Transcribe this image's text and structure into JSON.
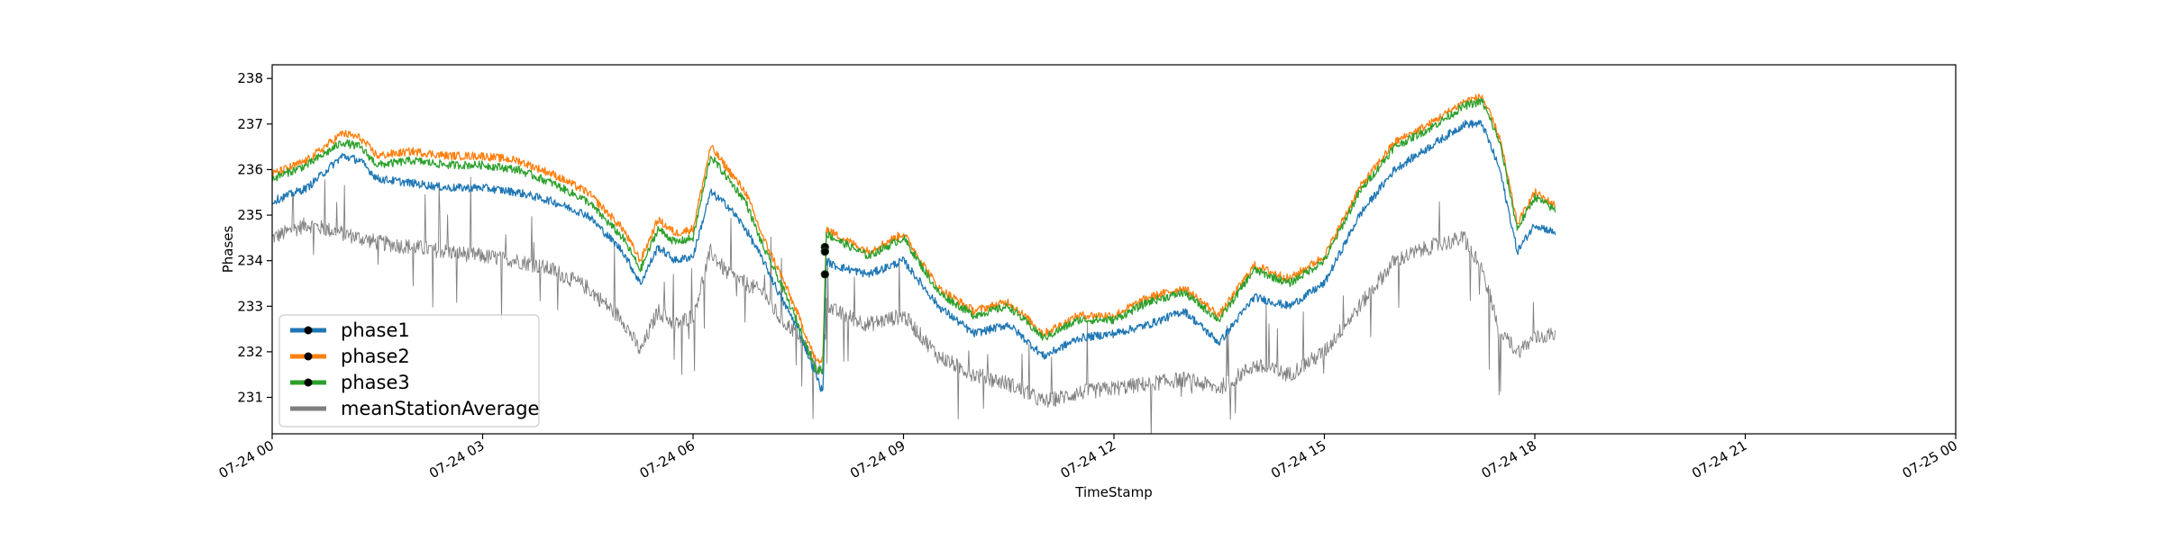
{
  "chart_data": {
    "type": "line",
    "title": "",
    "xlabel": "TimeStamp",
    "ylabel": "Phases",
    "xlim": [
      "2024-07-24 00:00",
      "2024-07-25 00:00"
    ],
    "ylim": [
      230.2,
      238.3
    ],
    "x_tick_labels": [
      "07-24 00",
      "07-24 03",
      "07-24 06",
      "07-24 09",
      "07-24 12",
      "07-24 15",
      "07-24 18",
      "07-24 21",
      "07-25 00"
    ],
    "y_ticks": [
      231,
      232,
      233,
      234,
      235,
      236,
      237,
      238
    ],
    "grid": false,
    "legend_position": "lower-left",
    "x_hours": [
      0,
      0.5,
      1.0,
      1.25,
      1.5,
      2.0,
      2.5,
      3.0,
      3.5,
      4.0,
      4.5,
      5.0,
      5.25,
      5.5,
      5.75,
      6.0,
      6.25,
      6.5,
      6.75,
      7.0,
      7.25,
      7.5,
      7.75,
      7.85,
      7.9,
      8.0,
      8.5,
      9.0,
      9.5,
      10.0,
      10.5,
      11.0,
      11.5,
      12.0,
      12.5,
      13.0,
      13.5,
      14.0,
      14.5,
      15.0,
      15.5,
      16.0,
      16.5,
      17.0,
      17.25,
      17.5,
      17.75,
      18.0,
      18.3
    ],
    "series": [
      {
        "name": "phase1",
        "color": "#1f77b4",
        "values": [
          235.3,
          235.6,
          236.3,
          236.2,
          235.8,
          235.7,
          235.6,
          235.6,
          235.5,
          235.3,
          235.0,
          234.2,
          233.5,
          234.3,
          234.0,
          234.1,
          235.5,
          235.2,
          234.7,
          234.0,
          233.2,
          232.5,
          231.5,
          231.1,
          234.0,
          233.9,
          233.7,
          234.0,
          233.0,
          232.4,
          232.6,
          231.9,
          232.3,
          232.4,
          232.6,
          232.9,
          232.2,
          233.2,
          233.0,
          233.5,
          235.0,
          236.0,
          236.5,
          237.0,
          237.0,
          236.0,
          234.2,
          234.8,
          234.6
        ]
      },
      {
        "name": "phase2",
        "color": "#ff7f0e",
        "values": [
          235.9,
          236.2,
          236.8,
          236.7,
          236.3,
          236.4,
          236.3,
          236.3,
          236.2,
          235.9,
          235.5,
          234.7,
          234.0,
          234.9,
          234.6,
          234.7,
          236.5,
          236.0,
          235.5,
          234.5,
          233.7,
          232.8,
          231.8,
          231.8,
          234.7,
          234.6,
          234.2,
          234.6,
          233.4,
          232.9,
          233.1,
          232.4,
          232.8,
          232.8,
          233.2,
          233.4,
          232.8,
          233.9,
          233.6,
          234.1,
          235.6,
          236.6,
          237.0,
          237.5,
          237.6,
          236.7,
          234.8,
          235.5,
          235.2
        ]
      },
      {
        "name": "phase3",
        "color": "#2ca02c",
        "values": [
          235.8,
          236.1,
          236.6,
          236.5,
          236.1,
          236.2,
          236.1,
          236.1,
          236.0,
          235.7,
          235.3,
          234.5,
          233.8,
          234.7,
          234.4,
          234.5,
          236.3,
          235.8,
          235.3,
          234.3,
          233.5,
          232.6,
          231.6,
          231.6,
          234.6,
          234.5,
          234.1,
          234.5,
          233.3,
          232.8,
          233.0,
          232.3,
          232.7,
          232.7,
          233.1,
          233.3,
          232.7,
          233.8,
          233.5,
          234.0,
          235.5,
          236.5,
          236.9,
          237.4,
          237.5,
          236.6,
          234.7,
          235.4,
          235.1
        ]
      },
      {
        "name": "meanStationAverage",
        "color": "#7f7f7f",
        "values": [
          234.5,
          234.8,
          234.6,
          234.5,
          234.4,
          234.3,
          234.2,
          234.1,
          234.0,
          233.8,
          233.4,
          232.7,
          232.0,
          232.9,
          232.6,
          232.8,
          234.2,
          233.7,
          233.5,
          233.3,
          232.7,
          232.4,
          231.7,
          231.5,
          233.1,
          232.9,
          232.6,
          232.8,
          231.9,
          231.5,
          231.3,
          230.9,
          231.1,
          231.2,
          231.3,
          231.4,
          231.2,
          231.7,
          231.5,
          232.0,
          233.0,
          234.0,
          234.3,
          234.5,
          233.8,
          232.5,
          232.0,
          232.3,
          232.4
        ]
      }
    ],
    "markers": [
      {
        "series": "phase1",
        "x_hour": 7.88,
        "y": 233.7
      },
      {
        "series": "phase2",
        "x_hour": 7.88,
        "y": 234.3
      },
      {
        "series": "phase3",
        "x_hour": 7.88,
        "y": 234.2
      }
    ]
  }
}
